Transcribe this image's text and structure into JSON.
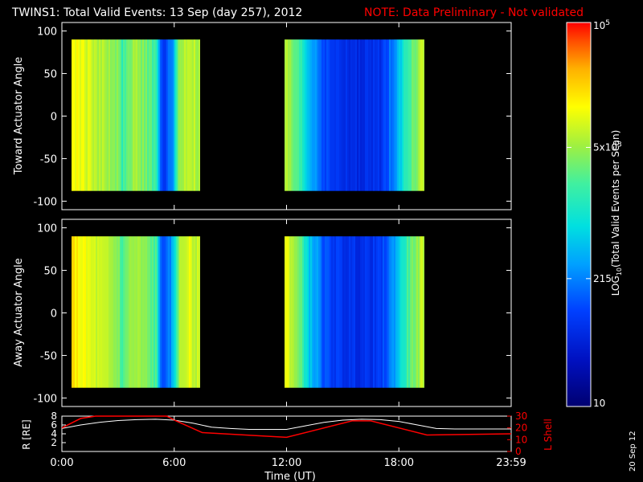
{
  "header": {
    "title": "TWINS1: Total Valid Events: 13 Sep (day 257), 2012",
    "note": "NOTE: Data Preliminary - Not validated"
  },
  "footer": {
    "date_stamp": "20 Sep 12"
  },
  "colors": {
    "background": "#000000",
    "axis": "#ffffff",
    "note": "#ff0000",
    "r_line": "#ffffff",
    "lshell_line": "#ff0000"
  },
  "chart_data": [
    {
      "type": "heatmap",
      "panel": "toward",
      "ylabel": "Toward Actuator Angle",
      "ylim": [
        -110,
        110
      ],
      "yticks": [
        100,
        50,
        0,
        -50,
        -100
      ],
      "xlim_hours": [
        0,
        24
      ],
      "angle_range": [
        -88,
        90
      ],
      "data_intervals_hours": [
        [
          0.55,
          7.35
        ],
        [
          11.9,
          19.3
        ]
      ],
      "profile": {
        "hours": [
          0.55,
          1.0,
          1.5,
          2.0,
          2.5,
          3.0,
          3.2,
          3.5,
          4.0,
          4.5,
          5.0,
          5.2,
          5.5,
          5.9,
          6.2,
          6.7,
          7.35,
          11.9,
          12.3,
          12.8,
          13.2,
          13.6,
          14.0,
          15.0,
          16.0,
          17.0,
          17.6,
          18.2,
          18.6,
          19.3
        ],
        "log_values": [
          4.1,
          4.05,
          3.9,
          3.8,
          3.7,
          3.55,
          3.2,
          3.6,
          3.7,
          3.5,
          3.2,
          2.2,
          1.9,
          2.5,
          3.6,
          3.9,
          3.7,
          3.8,
          3.5,
          3.1,
          2.6,
          2.4,
          2.0,
          1.8,
          1.75,
          1.85,
          2.3,
          3.0,
          3.4,
          3.9
        ]
      }
    },
    {
      "type": "heatmap",
      "panel": "away",
      "ylabel": "Away Actuator Angle",
      "ylim": [
        -110,
        110
      ],
      "yticks": [
        100,
        50,
        0,
        -50,
        -100
      ],
      "xlim_hours": [
        0,
        24
      ],
      "angle_range": [
        -88,
        90
      ],
      "data_intervals_hours": [
        [
          0.55,
          7.35
        ],
        [
          11.9,
          19.3
        ]
      ],
      "profile": {
        "hours": [
          0.55,
          1.0,
          1.5,
          2.0,
          2.5,
          3.0,
          3.2,
          3.5,
          4.0,
          4.5,
          5.0,
          5.2,
          5.5,
          5.9,
          6.2,
          6.7,
          7.35,
          11.9,
          12.3,
          12.8,
          13.2,
          13.6,
          14.0,
          15.0,
          16.0,
          17.0,
          17.6,
          18.2,
          18.6,
          19.3
        ],
        "log_values": [
          4.25,
          4.1,
          3.95,
          3.85,
          3.75,
          3.6,
          3.25,
          3.65,
          3.7,
          3.55,
          3.3,
          2.3,
          2.0,
          2.6,
          3.7,
          4.0,
          3.8,
          4.1,
          3.8,
          3.3,
          2.7,
          2.45,
          2.05,
          1.85,
          1.8,
          1.9,
          2.35,
          3.05,
          3.45,
          3.9
        ]
      }
    },
    {
      "type": "line",
      "panel": "orbit",
      "x_ticks": [
        "0:00",
        "6:00",
        "12:00",
        "18:00",
        "23:59"
      ],
      "x_tick_hours": [
        0,
        6,
        12,
        18,
        24
      ],
      "xlabel": "Time (UT)",
      "left_axis": {
        "label": "R [RE]",
        "ylim": [
          0,
          8
        ],
        "ticks": [
          8,
          6,
          4,
          2
        ]
      },
      "right_axis": {
        "label": "L Shell",
        "ylim": [
          0,
          30
        ],
        "ticks": [
          30,
          20,
          10,
          0
        ]
      },
      "series": [
        {
          "name": "R",
          "axis": "left",
          "hours": [
            0,
            1,
            2,
            3,
            4,
            5,
            6,
            7,
            8,
            9,
            10,
            11,
            12,
            13,
            14,
            15,
            16,
            17,
            18,
            19,
            20,
            21,
            22,
            23,
            24
          ],
          "values": [
            5.2,
            6.0,
            6.6,
            7.0,
            7.2,
            7.3,
            7.1,
            6.4,
            5.5,
            5.2,
            5.0,
            5.0,
            5.0,
            5.8,
            6.6,
            7.1,
            7.3,
            7.2,
            6.8,
            6.0,
            5.2,
            5.1,
            5.1,
            5.1,
            5.1
          ]
        },
        {
          "name": "L Shell",
          "axis": "right",
          "hours": [
            0,
            1.0,
            1.8,
            5.6,
            6.1,
            7.5,
            12.0,
            15.5,
            16.5,
            19.5,
            24.0
          ],
          "values": [
            20,
            28,
            33,
            33,
            26,
            16,
            12,
            26,
            26,
            14,
            15
          ]
        }
      ]
    }
  ],
  "colorbar": {
    "label": "LOG10(Total Valid Events per Scan)",
    "label_main": "LOG",
    "label_sub": "10",
    "label_rest": "(Total Valid Events per Scan)",
    "tick_top": "10",
    "tick_top_sup": "5",
    "tick_mid_base": "5x10",
    "tick_mid_sup": "3",
    "tick_215": "215",
    "tick_bottom": "10",
    "range_log": [
      1.0,
      5.0
    ],
    "tick_log_values": [
      5.0,
      3.699,
      2.332,
      1.0
    ]
  }
}
